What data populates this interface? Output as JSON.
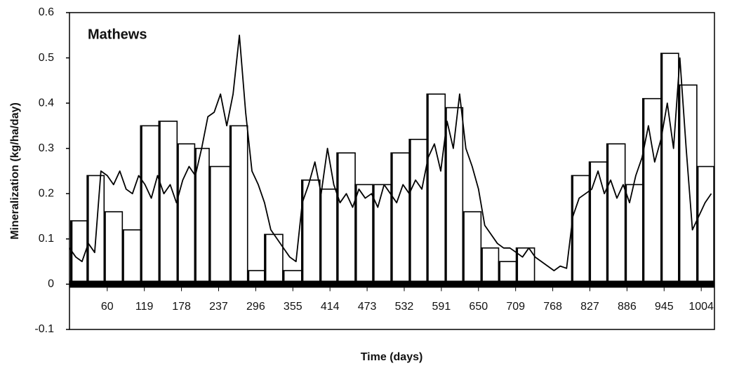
{
  "chart_data": {
    "type": "histogram",
    "title": "Mathews",
    "x_label": "Time (days)",
    "y_label": "Mineralization (kg/ha/day)",
    "xlim": [
      0,
      1025
    ],
    "ylim": [
      -0.1,
      0.6
    ],
    "xticks": [
      60,
      119,
      178,
      237,
      296,
      355,
      414,
      473,
      532,
      591,
      650,
      709,
      768,
      827,
      886,
      945,
      1004
    ],
    "yticks": [
      -0.1,
      0,
      0.1,
      0.2,
      0.3,
      0.4,
      0.5,
      0.6
    ],
    "color": "#000000",
    "bins": [
      2,
      28,
      55,
      84,
      113,
      142,
      171,
      199,
      222,
      255,
      283,
      310,
      339,
      369,
      398,
      425,
      454,
      482,
      511,
      540,
      568,
      597,
      625,
      654,
      682,
      710,
      739,
      798,
      826,
      854,
      883,
      911,
      940,
      968,
      997,
      1024
    ],
    "values": [
      0.14,
      0.24,
      0.16,
      0.12,
      0.35,
      0.36,
      0.31,
      0.3,
      0.26,
      0.35,
      0.03,
      0.11,
      0.03,
      0.23,
      0.21,
      0.29,
      0.22,
      0.22,
      0.29,
      0.32,
      0.42,
      0.39,
      0.16,
      0.08,
      0.05,
      0.08,
      null,
      0.24,
      0.27,
      0.31,
      0.22,
      0.41,
      0.51,
      0.44,
      0.26
    ],
    "line": {
      "x": [
        0,
        10,
        20,
        30,
        40,
        50,
        60,
        70,
        80,
        90,
        100,
        110,
        120,
        130,
        140,
        150,
        160,
        170,
        180,
        190,
        200,
        210,
        220,
        230,
        240,
        250,
        260,
        270,
        280,
        290,
        300,
        310,
        320,
        330,
        340,
        350,
        360,
        370,
        380,
        390,
        400,
        410,
        420,
        430,
        440,
        450,
        460,
        470,
        480,
        490,
        500,
        510,
        520,
        530,
        540,
        550,
        560,
        570,
        580,
        590,
        600,
        610,
        620,
        630,
        640,
        650,
        660,
        670,
        680,
        690,
        700,
        710,
        720,
        730,
        740,
        750,
        760,
        770,
        780,
        790,
        800,
        810,
        820,
        830,
        840,
        850,
        860,
        870,
        880,
        890,
        900,
        910,
        920,
        930,
        940,
        950,
        960,
        970,
        980,
        990,
        1000,
        1010,
        1020
      ],
      "values": [
        0.08,
        0.06,
        0.05,
        0.09,
        0.07,
        0.25,
        0.24,
        0.22,
        0.25,
        0.21,
        0.2,
        0.24,
        0.22,
        0.19,
        0.24,
        0.2,
        0.22,
        0.18,
        0.23,
        0.26,
        0.24,
        0.3,
        0.37,
        0.38,
        0.42,
        0.35,
        0.42,
        0.55,
        0.38,
        0.25,
        0.22,
        0.18,
        0.12,
        0.1,
        0.08,
        0.06,
        0.05,
        0.18,
        0.22,
        0.27,
        0.2,
        0.3,
        0.22,
        0.18,
        0.2,
        0.17,
        0.21,
        0.19,
        0.2,
        0.17,
        0.22,
        0.2,
        0.18,
        0.22,
        0.2,
        0.23,
        0.21,
        0.28,
        0.31,
        0.25,
        0.36,
        0.3,
        0.42,
        0.3,
        0.26,
        0.21,
        0.13,
        0.11,
        0.09,
        0.08,
        0.08,
        0.07,
        0.06,
        0.08,
        0.06,
        0.05,
        0.04,
        0.03,
        0.04,
        0.035,
        0.15,
        0.19,
        0.2,
        0.21,
        0.25,
        0.2,
        0.23,
        0.19,
        0.22,
        0.18,
        0.24,
        0.28,
        0.35,
        0.27,
        0.32,
        0.4,
        0.3,
        0.5,
        0.3,
        0.12,
        0.15,
        0.18,
        0.2
      ]
    }
  }
}
